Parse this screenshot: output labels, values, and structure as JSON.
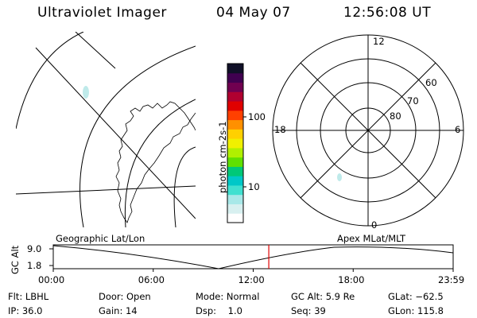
{
  "header": {
    "instrument": "Ultraviolet Imager",
    "date": "04 May 07",
    "time": "12:56:08 UT"
  },
  "colorbar": {
    "label": "photon cm-2s-1",
    "tick_100": "100",
    "tick_10": "10",
    "colors": [
      "#ffffff",
      "#d8f0f0",
      "#a8e8e8",
      "#40e0d0",
      "#00c8c8",
      "#00c878",
      "#60e000",
      "#b0f000",
      "#f0f000",
      "#ffd000",
      "#ff9000",
      "#ff4000",
      "#e00000",
      "#b00030",
      "#700050",
      "#400050",
      "#101028"
    ]
  },
  "polar": {
    "label_12": "12",
    "label_18": "18",
    "label_6": "6",
    "label_0": "0",
    "label_60": "60",
    "label_70": "70",
    "label_80": "80"
  },
  "timeline": {
    "left_title": "Geographic Lat/Lon",
    "right_title": "Apex MLat/MLT",
    "ylabel": "GC Alt",
    "ytick_top": "9.0",
    "ytick_bottom": "1.8",
    "xticks": [
      "00:00",
      "06:00",
      "12:00",
      "18:00",
      "23:59"
    ],
    "marker_time_hours": 12.935,
    "marker_color": "#e00000"
  },
  "footer": {
    "flt": "Flt: LBHL",
    "ip": "IP: 36.0",
    "door": "Door: Open",
    "gain": "Gain: 14",
    "mode": "Mode: Normal",
    "dsp": "Dsp:    1.0",
    "gcalt": "GC Alt: 5.9 Re",
    "seq": "Seq: 39",
    "glat": "GLat: −62.5",
    "glon": "GLon: 115.8"
  }
}
